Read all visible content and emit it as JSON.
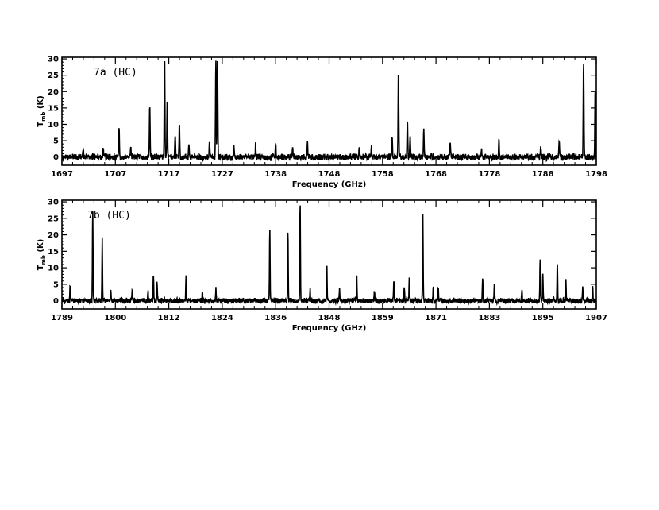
{
  "chart_data": [
    {
      "type": "line",
      "panel_label": "7a (HC)",
      "xlabel": "Frequency (GHz)",
      "ylabel": "T",
      "ylabel_sub": "mb",
      "ylabel_unit": " (K)",
      "xlim": [
        1697,
        1798
      ],
      "ylim": [
        -2.5,
        30.5
      ],
      "x_ticks": [
        1697,
        1707,
        1717,
        1727,
        1738,
        1748,
        1758,
        1768,
        1778,
        1788,
        1798
      ],
      "y_ticks": [
        0,
        5,
        10,
        15,
        20,
        25,
        30
      ],
      "series": [
        {
          "noise_amplitude": 1.2,
          "peaks": [
            {
              "x": 1701.0,
              "y": 2.5
            },
            {
              "x": 1704.8,
              "y": 3.0
            },
            {
              "x": 1707.8,
              "y": 8.8
            },
            {
              "x": 1710.0,
              "y": 3.5
            },
            {
              "x": 1713.6,
              "y": 15.8
            },
            {
              "x": 1716.4,
              "y": 30.5
            },
            {
              "x": 1716.9,
              "y": 17.0
            },
            {
              "x": 1718.4,
              "y": 7.0
            },
            {
              "x": 1719.2,
              "y": 10.5
            },
            {
              "x": 1721.0,
              "y": 3.0
            },
            {
              "x": 1724.9,
              "y": 5.0
            },
            {
              "x": 1726.1,
              "y": 30.5
            },
            {
              "x": 1726.4,
              "y": 30.5
            },
            {
              "x": 1729.5,
              "y": 4.0
            },
            {
              "x": 1733.6,
              "y": 3.5
            },
            {
              "x": 1737.4,
              "y": 4.0
            },
            {
              "x": 1740.6,
              "y": 3.0
            },
            {
              "x": 1743.4,
              "y": 5.0
            },
            {
              "x": 1753.2,
              "y": 3.5
            },
            {
              "x": 1755.5,
              "y": 3.0
            },
            {
              "x": 1759.4,
              "y": 6.5
            },
            {
              "x": 1760.6,
              "y": 26.5
            },
            {
              "x": 1762.3,
              "y": 12.0
            },
            {
              "x": 1762.8,
              "y": 6.5
            },
            {
              "x": 1765.4,
              "y": 8.5
            },
            {
              "x": 1770.4,
              "y": 4.5
            },
            {
              "x": 1776.3,
              "y": 3.0
            },
            {
              "x": 1779.6,
              "y": 5.5
            },
            {
              "x": 1787.5,
              "y": 4.0
            },
            {
              "x": 1791.0,
              "y": 5.0
            },
            {
              "x": 1795.6,
              "y": 29.0
            },
            {
              "x": 1797.8,
              "y": 20.5
            }
          ]
        }
      ]
    },
    {
      "type": "line",
      "panel_label": "7b (HC)",
      "xlabel": "Frequency (GHz)",
      "ylabel": "T",
      "ylabel_sub": "mb",
      "ylabel_unit": " (K)",
      "xlim": [
        1789,
        1907
      ],
      "ylim": [
        -2.5,
        30.5
      ],
      "x_ticks": [
        1789,
        1800,
        1812,
        1824,
        1836,
        1848,
        1859,
        1871,
        1883,
        1895,
        1907
      ],
      "y_ticks": [
        0,
        5,
        10,
        15,
        20,
        25,
        30
      ],
      "series": [
        {
          "noise_amplitude": 1.0,
          "peaks": [
            {
              "x": 1790.8,
              "y": 5.0
            },
            {
              "x": 1795.8,
              "y": 27.0
            },
            {
              "x": 1797.9,
              "y": 18.5
            },
            {
              "x": 1799.8,
              "y": 3.0
            },
            {
              "x": 1804.5,
              "y": 3.5
            },
            {
              "x": 1808.0,
              "y": 3.0
            },
            {
              "x": 1809.2,
              "y": 8.0
            },
            {
              "x": 1810.0,
              "y": 5.5
            },
            {
              "x": 1816.4,
              "y": 7.0
            },
            {
              "x": 1820.0,
              "y": 3.0
            },
            {
              "x": 1823.0,
              "y": 3.5
            },
            {
              "x": 1834.9,
              "y": 22.0
            },
            {
              "x": 1838.9,
              "y": 21.5
            },
            {
              "x": 1841.6,
              "y": 30.5
            },
            {
              "x": 1843.8,
              "y": 3.5
            },
            {
              "x": 1847.5,
              "y": 10.0
            },
            {
              "x": 1850.3,
              "y": 3.5
            },
            {
              "x": 1854.1,
              "y": 7.0
            },
            {
              "x": 1858.0,
              "y": 3.5
            },
            {
              "x": 1862.3,
              "y": 6.0
            },
            {
              "x": 1864.6,
              "y": 4.5
            },
            {
              "x": 1865.7,
              "y": 7.0
            },
            {
              "x": 1868.7,
              "y": 26.5
            },
            {
              "x": 1871.0,
              "y": 4.5
            },
            {
              "x": 1872.1,
              "y": 3.5
            },
            {
              "x": 1881.9,
              "y": 7.0
            },
            {
              "x": 1884.5,
              "y": 5.5
            },
            {
              "x": 1890.6,
              "y": 3.5
            },
            {
              "x": 1894.6,
              "y": 13.0
            },
            {
              "x": 1895.2,
              "y": 7.5
            },
            {
              "x": 1898.4,
              "y": 12.0
            },
            {
              "x": 1900.3,
              "y": 6.0
            },
            {
              "x": 1904.0,
              "y": 3.5
            },
            {
              "x": 1906.2,
              "y": 4.0
            }
          ]
        }
      ]
    }
  ]
}
